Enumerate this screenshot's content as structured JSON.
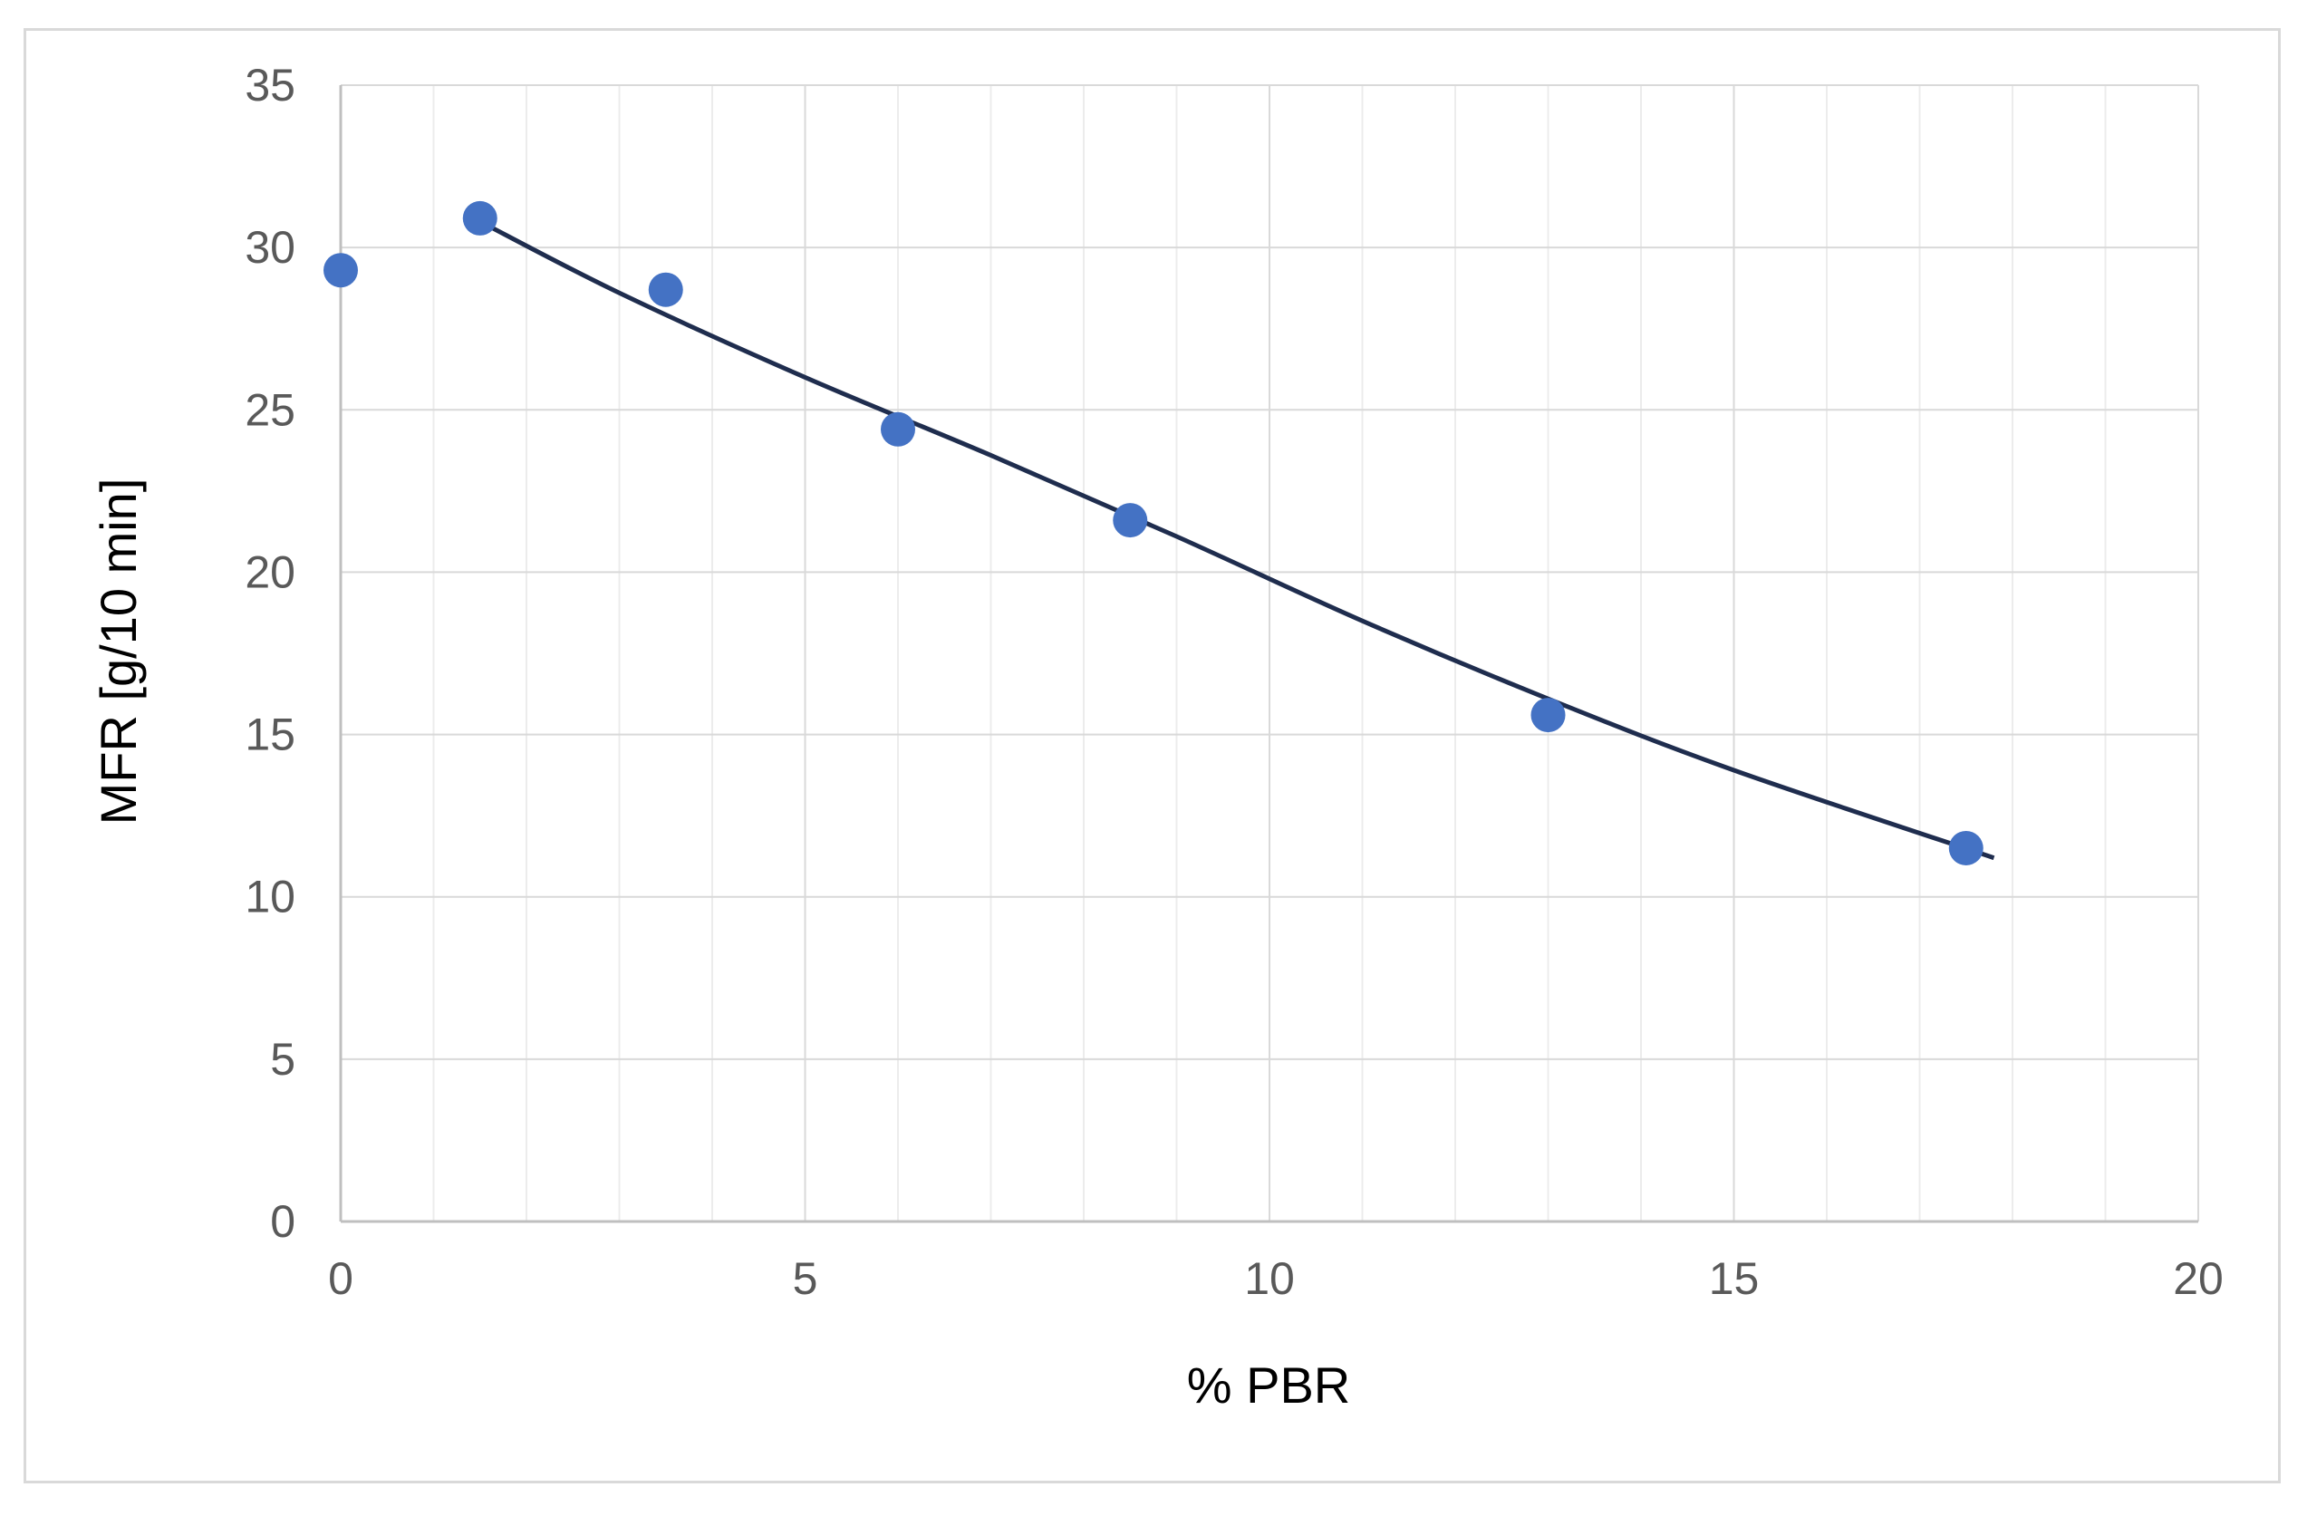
{
  "chart_data": {
    "type": "scatter",
    "title": "",
    "xlabel": "% PBR",
    "ylabel": "MFR [g/10 min]",
    "xlim": [
      0,
      20
    ],
    "ylim": [
      0,
      35
    ],
    "x_ticks": [
      0,
      5,
      10,
      15,
      20
    ],
    "y_ticks": [
      0,
      5,
      10,
      15,
      20,
      25,
      30,
      35
    ],
    "x_minor_step": 1,
    "grid": true,
    "legend": "none",
    "series": [
      {
        "points": [
          {
            "x": 0,
            "y": 29.3
          },
          {
            "x": 1.5,
            "y": 30.9
          },
          {
            "x": 3.5,
            "y": 28.7
          },
          {
            "x": 6,
            "y": 24.4
          },
          {
            "x": 8.5,
            "y": 21.6
          },
          {
            "x": 13,
            "y": 15.6
          },
          {
            "x": 17.5,
            "y": 11.5
          }
        ],
        "color": "#4472c4"
      }
    ],
    "trendline": {
      "x": [
        1.5,
        3,
        5,
        7,
        9,
        11,
        13,
        15,
        17.8
      ],
      "y": [
        30.8,
        28.6,
        26.0,
        23.6,
        21.1,
        18.5,
        16.1,
        13.9,
        11.2
      ],
      "color": "#1f2d4e"
    }
  }
}
